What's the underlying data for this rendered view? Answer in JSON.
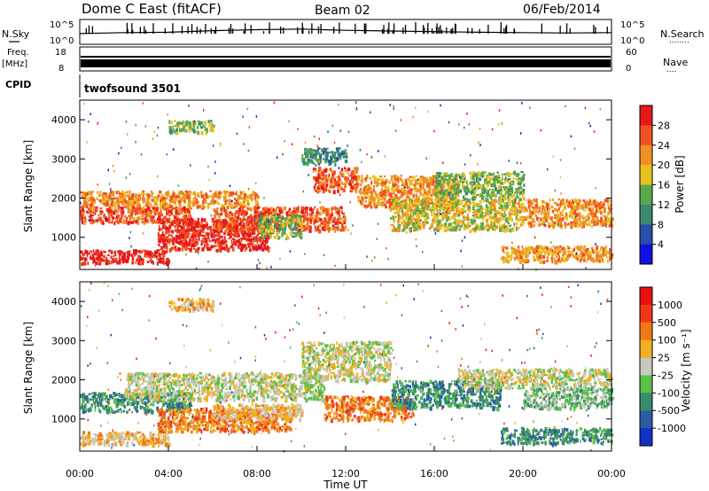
{
  "header": {
    "station": "Dome C East (fitACF)",
    "beam": "Beam 02",
    "date": "06/Feb/2014"
  },
  "labels": {
    "nsky": "N.Sky",
    "nsearch": "N.Search",
    "freq": "Freq.",
    "freq_unit": "[MHz]",
    "nave": "Nave",
    "cpid": "CPID",
    "cpid_value": "twofsound 3501",
    "dots_nsearch": "........",
    "dots_nave": "...."
  },
  "strip_ticks": {
    "nsky_top": "10^5",
    "nsky_bottom": "10^0",
    "nsearch_top": "10^5",
    "nsearch_bottom": "10^0",
    "freq_top": "18",
    "freq_bottom": "8",
    "nave_top": "60",
    "nave_bottom": "0"
  },
  "chart_data": [
    {
      "type": "heatmap",
      "name": "power",
      "ylabel": "Slant Range [km]",
      "xlabel": "",
      "ylim": [
        180,
        4500
      ],
      "yticks": [
        1000,
        2000,
        3000,
        4000
      ],
      "colorbar": {
        "label": "Power [dB]",
        "ticks": [
          "4",
          "8",
          "12",
          "16",
          "20",
          "24",
          "28"
        ],
        "colors": [
          "#1010e0",
          "#2a4fa8",
          "#3b8a6e",
          "#5aa84a",
          "#e8c020",
          "#f09020",
          "#f05020",
          "#e81818"
        ]
      },
      "regions": [
        {
          "t0": 0.0,
          "t1": 4.0,
          "r0": 350,
          "r1": 700,
          "level": 7
        },
        {
          "t0": 0.0,
          "t1": 5.0,
          "r0": 1400,
          "r1": 1800,
          "level": 6
        },
        {
          "t0": 3.5,
          "t1": 8.5,
          "r0": 700,
          "r1": 1500,
          "level": 7
        },
        {
          "t0": 4.0,
          "t1": 6.0,
          "r0": 3700,
          "r1": 4000,
          "level": 3
        },
        {
          "t0": 0.0,
          "t1": 8.0,
          "r0": 1800,
          "r1": 2200,
          "level": 5
        },
        {
          "t0": 6.0,
          "t1": 12.0,
          "r0": 1200,
          "r1": 1800,
          "level": 6
        },
        {
          "t0": 10.5,
          "t1": 12.5,
          "r0": 2200,
          "r1": 2800,
          "level": 6
        },
        {
          "t0": 12.5,
          "t1": 17.0,
          "r0": 1800,
          "r1": 2600,
          "level": 5
        },
        {
          "t0": 14.0,
          "t1": 20.0,
          "r0": 1200,
          "r1": 2000,
          "level": 4
        },
        {
          "t0": 19.0,
          "t1": 24.0,
          "r0": 400,
          "r1": 800,
          "level": 5
        },
        {
          "t0": 20.0,
          "t1": 24.0,
          "r0": 1300,
          "r1": 2000,
          "level": 5
        },
        {
          "t0": 16.0,
          "t1": 20.0,
          "r0": 2000,
          "r1": 2700,
          "level": 3
        },
        {
          "t0": 10.0,
          "t1": 12.0,
          "r0": 2900,
          "r1": 3300,
          "level": 2
        },
        {
          "t0": 8.0,
          "t1": 10.0,
          "r0": 1000,
          "r1": 1600,
          "level": 3
        }
      ]
    },
    {
      "type": "heatmap",
      "name": "velocity",
      "ylabel": "Slant Range [km]",
      "xlabel": "Time UT",
      "ylim": [
        180,
        4500
      ],
      "yticks": [
        1000,
        2000,
        3000,
        4000
      ],
      "xticks": [
        "00:00",
        "04:00",
        "08:00",
        "12:00",
        "16:00",
        "20:00",
        "00:00"
      ],
      "xlim_hours": [
        0,
        24
      ],
      "colorbar": {
        "label": "Velocity [m s⁻¹]",
        "ticks": [
          "1000",
          "500",
          "100",
          "25",
          "-25",
          "-100",
          "-500",
          "-1000"
        ],
        "colors": [
          "#1030c8",
          "#2a5ea0",
          "#3a8a6a",
          "#5ac04a",
          "#c8c8c0",
          "#f0b020",
          "#f07818",
          "#f03818",
          "#e81010"
        ]
      },
      "regions": [
        {
          "t0": 0.0,
          "t1": 4.0,
          "r0": 350,
          "r1": 700,
          "level": 5
        },
        {
          "t0": 0.0,
          "t1": 5.0,
          "r0": 1200,
          "r1": 1700,
          "level": 2
        },
        {
          "t0": 3.5,
          "t1": 9.5,
          "r0": 700,
          "r1": 1300,
          "level": 6
        },
        {
          "t0": 2.0,
          "t1": 11.0,
          "r0": 1500,
          "r1": 2200,
          "level": 4
        },
        {
          "t0": 4.0,
          "t1": 6.0,
          "r0": 3800,
          "r1": 4100,
          "level": 5
        },
        {
          "t0": 10.0,
          "t1": 14.0,
          "r0": 2000,
          "r1": 3000,
          "level": 4
        },
        {
          "t0": 11.0,
          "t1": 15.0,
          "r0": 1000,
          "r1": 1600,
          "level": 6
        },
        {
          "t0": 14.0,
          "t1": 19.0,
          "r0": 1300,
          "r1": 2000,
          "level": 2
        },
        {
          "t0": 17.0,
          "t1": 24.0,
          "r0": 1800,
          "r1": 2300,
          "level": 4
        },
        {
          "t0": 20.0,
          "t1": 24.0,
          "r0": 1300,
          "r1": 1800,
          "level": 3
        },
        {
          "t0": 19.0,
          "t1": 24.0,
          "r0": 400,
          "r1": 800,
          "level": 2
        },
        {
          "t0": 6.0,
          "t1": 10.0,
          "r0": 1000,
          "r1": 1400,
          "level": 5
        }
      ]
    }
  ],
  "noise_series": {
    "hours": [
      0,
      2,
      4,
      6,
      8,
      10,
      12,
      14,
      16,
      18,
      20,
      22,
      24
    ],
    "nsky": [
      0.55,
      0.6,
      0.62,
      0.7,
      0.75,
      0.78,
      0.72,
      0.68,
      0.65,
      0.62,
      0.6,
      0.58,
      0.6
    ]
  }
}
